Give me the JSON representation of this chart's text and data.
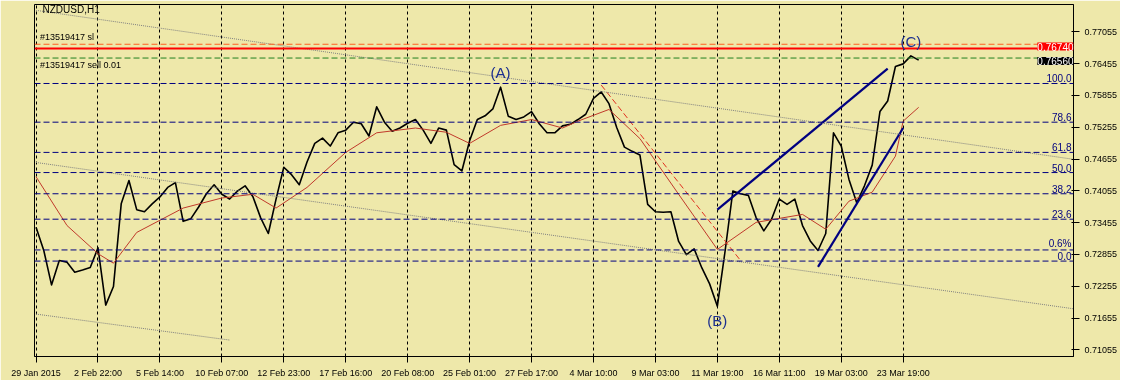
{
  "chart_data": {
    "type": "line",
    "title": "NZDUSD,H1",
    "categories": [
      "29 Jan 2015",
      null,
      null,
      null,
      null,
      null,
      null,
      null,
      "2 Feb 22:00",
      null,
      null,
      null,
      null,
      null,
      null,
      null,
      "5 Feb 14:00",
      null,
      null,
      null,
      null,
      null,
      null,
      null,
      "10 Feb 07:00",
      null,
      null,
      null,
      null,
      null,
      null,
      null,
      "12 Feb 23:00",
      null,
      null,
      null,
      null,
      null,
      null,
      null,
      "17 Feb 16:00",
      null,
      null,
      null,
      null,
      null,
      null,
      null,
      "20 Feb 08:00",
      null,
      null,
      null,
      null,
      null,
      null,
      null,
      "25 Feb 01:00",
      null,
      null,
      null,
      null,
      null,
      null,
      null,
      "27 Feb 17:00",
      null,
      null,
      null,
      null,
      null,
      null,
      null,
      "4 Mar 10:00",
      null,
      null,
      null,
      null,
      null,
      null,
      null,
      "9 Mar 03:00",
      null,
      null,
      null,
      null,
      null,
      null,
      null,
      "11 Mar 19:00",
      null,
      null,
      null,
      null,
      null,
      null,
      null,
      "16 Mar 11:00",
      null,
      null,
      null,
      null,
      null,
      null,
      null,
      "19 Mar 03:00",
      null,
      null,
      null,
      null,
      null,
      null,
      null,
      "23 Mar 19:00",
      null,
      null,
      null,
      null,
      null,
      null,
      null,
      null,
      null,
      null,
      null,
      null,
      null,
      null,
      null,
      null,
      null,
      null,
      null,
      null,
      null,
      null
    ],
    "series": [
      {
        "color": "#000000",
        "values": [
          0.7337,
          0.7293,
          0.7228,
          0.7274,
          0.7271,
          0.7252,
          0.7256,
          0.7261,
          0.7298,
          0.719,
          0.7225,
          0.7381,
          0.7425,
          0.737,
          0.7366,
          0.7381,
          0.7394,
          0.7412,
          0.7421,
          0.7348,
          0.7353,
          0.7375,
          0.74,
          0.7417,
          0.7399,
          0.739,
          0.7405,
          0.7415,
          0.7395,
          0.7355,
          0.7325,
          0.739,
          0.745,
          0.7436,
          0.7417,
          0.746,
          0.7495,
          0.7505,
          0.749,
          0.7515,
          0.752,
          0.7535,
          0.7532,
          0.7509,
          0.7564,
          0.7535,
          0.7518,
          0.7524,
          0.7533,
          0.754,
          0.752,
          0.7495,
          0.7524,
          0.752,
          0.7455,
          0.7443,
          0.75,
          0.754,
          0.7547,
          0.756,
          0.7601,
          0.7546,
          0.754,
          0.7545,
          0.7555,
          0.7532,
          0.7515,
          0.7515,
          0.7528,
          0.7531,
          0.754,
          0.755,
          0.758,
          0.7592,
          0.757,
          0.7525,
          0.7488,
          0.748,
          0.7473,
          0.738,
          0.7366,
          0.7365,
          0.7366,
          0.731,
          0.7285,
          0.7296,
          0.726,
          0.723,
          0.7188,
          0.7292,
          0.7405,
          0.74,
          0.7397,
          0.7355,
          0.733,
          0.7352,
          0.739,
          0.738,
          0.739,
          0.734,
          0.7311,
          0.7293,
          0.7325,
          0.7515,
          0.749,
          0.7427,
          0.7383,
          0.7415,
          0.7454,
          0.7555,
          0.7575,
          0.764,
          0.7645,
          0.766,
          0.7652,
          null,
          null,
          null,
          null,
          null,
          null,
          null,
          null,
          null,
          null,
          null,
          null,
          null,
          null,
          null,
          null,
          null,
          null,
          null,
          null
        ]
      },
      {
        "color": "#c0392b",
        "values": [
          0.7432,
          null,
          null,
          null,
          0.734,
          null,
          null,
          null,
          0.7287,
          null,
          0.7269,
          null,
          null,
          0.7327,
          null,
          null,
          null,
          null,
          null,
          0.7373,
          null,
          null,
          null,
          null,
          0.7392,
          null,
          null,
          null,
          0.7399,
          null,
          null,
          0.7373,
          null,
          null,
          null,
          0.7412,
          null,
          null,
          null,
          null,
          0.7478,
          null,
          null,
          null,
          0.7515,
          null,
          null,
          null,
          null,
          0.7524,
          null,
          null,
          null,
          0.7516,
          null,
          null,
          0.7495,
          null,
          null,
          null,
          0.7529,
          null,
          null,
          null,
          0.754,
          null,
          null,
          null,
          0.7524,
          null,
          0.7537,
          null,
          null,
          null,
          0.7559,
          null,
          null,
          null,
          0.7504,
          null,
          null,
          null,
          null,
          0.7399,
          null,
          null,
          null,
          null,
          0.7295,
          null,
          null,
          null,
          null,
          0.7346,
          null,
          null,
          null,
          null,
          null,
          0.7361,
          null,
          null,
          0.7333,
          null,
          null,
          0.7386,
          null,
          null,
          0.7403,
          null,
          null,
          0.7471,
          0.7537,
          null,
          0.7563,
          null,
          null,
          null,
          null,
          null,
          null,
          null,
          null,
          null,
          null,
          null,
          null,
          null,
          null,
          null,
          null,
          null,
          null,
          null,
          null
        ]
      },
      {
        "color": "#000080",
        "values": [
          null,
          null,
          null,
          null,
          null,
          null,
          null,
          null,
          null,
          null,
          null,
          null,
          null,
          null,
          null,
          null,
          null,
          null,
          null,
          null,
          null,
          null,
          null,
          null,
          null,
          null,
          null,
          null,
          null,
          null,
          null,
          null,
          null,
          null,
          null,
          null,
          null,
          null,
          null,
          null,
          null,
          null,
          null,
          null,
          null,
          null,
          null,
          null,
          null,
          null,
          null,
          null,
          null,
          null,
          null,
          null,
          null,
          null,
          null,
          null,
          null,
          null,
          null,
          null,
          null,
          null,
          null,
          null,
          null,
          null,
          null,
          null,
          null,
          null,
          null,
          null,
          null,
          null,
          null,
          null,
          null,
          null,
          null,
          null,
          null,
          null,
          null,
          null,
          0.737,
          null,
          null,
          null,
          null,
          null,
          null,
          null,
          null,
          null,
          null,
          null,
          null,
          null,
          null,
          null,
          null,
          null,
          null,
          null,
          null,
          null,
          0.7636,
          null,
          null,
          null,
          null,
          null,
          null,
          null,
          null,
          null,
          null,
          null,
          null,
          null,
          null,
          null,
          null,
          null,
          null,
          null,
          null,
          null,
          null,
          null,
          null
        ]
      },
      {
        "color": "#000080",
        "values": [
          null,
          null,
          null,
          null,
          null,
          null,
          null,
          null,
          null,
          null,
          null,
          null,
          null,
          null,
          null,
          null,
          null,
          null,
          null,
          null,
          null,
          null,
          null,
          null,
          null,
          null,
          null,
          null,
          null,
          null,
          null,
          null,
          null,
          null,
          null,
          null,
          null,
          null,
          null,
          null,
          null,
          null,
          null,
          null,
          null,
          null,
          null,
          null,
          null,
          null,
          null,
          null,
          null,
          null,
          null,
          null,
          null,
          null,
          null,
          null,
          null,
          null,
          null,
          null,
          null,
          null,
          null,
          null,
          null,
          null,
          null,
          null,
          null,
          null,
          null,
          null,
          null,
          null,
          null,
          null,
          null,
          null,
          null,
          null,
          null,
          null,
          null,
          null,
          null,
          null,
          null,
          null,
          null,
          null,
          null,
          null,
          null,
          null,
          null,
          null,
          null,
          0.7262,
          null,
          null,
          null,
          null,
          null,
          null,
          null,
          null,
          null,
          null,
          0.7524,
          null,
          null,
          null,
          null,
          null,
          null,
          null,
          null,
          null,
          null,
          null,
          null,
          null,
          null,
          null,
          null,
          null,
          null,
          null,
          null,
          null,
          null
        ]
      },
      {
        "color": "#e03020",
        "line_style": "dashed",
        "values": [
          null,
          null,
          null,
          null,
          null,
          null,
          null,
          null,
          null,
          null,
          null,
          null,
          null,
          null,
          null,
          null,
          null,
          null,
          null,
          null,
          null,
          null,
          null,
          null,
          null,
          null,
          null,
          null,
          null,
          null,
          null,
          null,
          null,
          null,
          null,
          null,
          null,
          null,
          null,
          null,
          null,
          null,
          null,
          null,
          null,
          null,
          null,
          null,
          null,
          null,
          null,
          null,
          null,
          null,
          null,
          null,
          null,
          null,
          null,
          null,
          null,
          null,
          null,
          null,
          null,
          null,
          null,
          null,
          null,
          null,
          null,
          null,
          null,
          0.7605,
          null,
          null,
          null,
          null,
          null,
          null,
          null,
          null,
          null,
          null,
          null,
          null,
          null,
          null,
          null,
          null,
          null,
          0.7274,
          null,
          null,
          null,
          null,
          null,
          null,
          null,
          null,
          null,
          null,
          null,
          null,
          null,
          null,
          null,
          null,
          null,
          null,
          null,
          null,
          null,
          null,
          null,
          null,
          null,
          null,
          null,
          null,
          null,
          null,
          null,
          null,
          null,
          null,
          null,
          null,
          null,
          null,
          null,
          null,
          null,
          null,
          null
        ]
      },
      {
        "color": "#808080",
        "line_style": "dotted",
        "values": [
          0.7746,
          null,
          null,
          null,
          null,
          null,
          null,
          null,
          null,
          null,
          null,
          null,
          null,
          null,
          null,
          null,
          null,
          null,
          null,
          null,
          null,
          null,
          null,
          null,
          null,
          null,
          null,
          null,
          null,
          null,
          null,
          null,
          null,
          null,
          null,
          null,
          null,
          null,
          null,
          null,
          null,
          null,
          null,
          null,
          null,
          null,
          null,
          null,
          null,
          null,
          null,
          null,
          null,
          null,
          null,
          null,
          null,
          null,
          null,
          null,
          null,
          null,
          null,
          null,
          null,
          null,
          null,
          null,
          null,
          null,
          null,
          null,
          null,
          null,
          null,
          null,
          null,
          null,
          null,
          null,
          null,
          null,
          null,
          null,
          null,
          null,
          null,
          null,
          null,
          null,
          null,
          null,
          null,
          null,
          null,
          null,
          null,
          null,
          null,
          null,
          null,
          null,
          null,
          null,
          null,
          null,
          null,
          null,
          null,
          null,
          null,
          null,
          null,
          null,
          null,
          null,
          null,
          null,
          null,
          null,
          null,
          null,
          null,
          null,
          null,
          null,
          null,
          null,
          null,
          null,
          null,
          null,
          null,
          null,
          0.7465
        ]
      },
      {
        "color": "#808080",
        "line_style": "dotted",
        "values": [
          0.7459,
          null,
          null,
          null,
          null,
          null,
          null,
          null,
          null,
          null,
          null,
          null,
          null,
          null,
          null,
          null,
          null,
          null,
          null,
          null,
          null,
          null,
          null,
          null,
          null,
          null,
          null,
          null,
          null,
          null,
          null,
          null,
          null,
          null,
          null,
          null,
          null,
          null,
          null,
          null,
          null,
          null,
          null,
          null,
          null,
          null,
          null,
          null,
          null,
          null,
          null,
          null,
          null,
          null,
          null,
          null,
          null,
          null,
          null,
          null,
          null,
          null,
          null,
          null,
          null,
          null,
          null,
          null,
          null,
          null,
          null,
          null,
          null,
          null,
          null,
          null,
          null,
          null,
          null,
          null,
          null,
          null,
          null,
          null,
          null,
          null,
          null,
          null,
          null,
          null,
          null,
          null,
          null,
          null,
          null,
          null,
          null,
          null,
          null,
          null,
          null,
          null,
          null,
          null,
          null,
          null,
          null,
          null,
          null,
          null,
          null,
          null,
          null,
          null,
          null,
          null,
          null,
          null,
          null,
          null,
          null,
          null,
          null,
          null,
          null,
          null,
          null,
          null,
          null,
          null,
          null,
          null,
          null,
          null,
          0.7183
        ]
      },
      {
        "color": "#808080",
        "line_style": "dotted",
        "values": [
          0.7173,
          null,
          null,
          null,
          null,
          null,
          null,
          null,
          null,
          null,
          null,
          null,
          null,
          null,
          null,
          null,
          null,
          null,
          null,
          null,
          null,
          null,
          null,
          null,
          null,
          0.7124,
          null,
          null,
          null,
          null,
          null,
          null,
          null,
          null,
          null,
          null,
          null,
          null,
          null,
          null,
          null,
          null,
          null,
          null,
          null,
          null,
          null,
          null,
          null,
          null,
          null,
          null,
          null,
          null,
          null,
          null,
          null,
          null,
          null,
          null,
          null,
          null,
          null,
          null,
          null,
          null,
          null,
          null,
          null,
          null,
          null,
          null,
          null,
          null,
          null,
          null,
          null,
          null,
          null,
          null,
          null,
          null,
          null,
          null,
          null,
          null,
          null,
          null,
          null,
          null,
          null,
          null,
          null,
          null,
          null,
          null,
          null,
          null,
          null,
          null,
          null,
          null,
          null,
          null,
          null,
          null,
          null,
          null,
          null,
          null,
          null,
          null,
          null,
          null,
          null,
          null,
          null,
          null,
          null,
          null,
          null,
          null,
          null,
          null,
          null,
          null,
          null,
          null,
          null,
          null,
          null,
          null,
          null,
          null,
          null
        ]
      }
    ],
    "ylim": [
      0.7093,
      0.7757
    ],
    "yticks": [
      0.71055,
      0.71655,
      0.72255,
      0.72855,
      0.73455,
      0.74055,
      0.74655,
      0.75255,
      0.75855,
      0.76455,
      0.77055
    ],
    "grid": "x",
    "ref_lines": [
      {
        "axis": "y",
        "value": 0.7682,
        "label": "#13519417 sl",
        "color": "#ff6020",
        "line_style": "dashed"
      },
      {
        "axis": "y",
        "value": 0.7656,
        "label": "#13519417 sell 0.01",
        "color": "#208020",
        "line_style": "dashed"
      },
      {
        "axis": "y",
        "value": 0.7674,
        "label": "0.76740",
        "color": "#ff0000",
        "line_style": "solid"
      },
      {
        "axis": "y",
        "value": 0.7608,
        "color": "#000080",
        "line_style": "dashed"
      },
      {
        "axis": "y",
        "value": 0.7535,
        "color": "#000080",
        "line_style": "dashed"
      },
      {
        "axis": "y",
        "value": 0.7478,
        "color": "#000080",
        "line_style": "dashed"
      },
      {
        "axis": "y",
        "value": 0.744,
        "color": "#000080",
        "line_style": "dashed"
      },
      {
        "axis": "y",
        "value": 0.74,
        "color": "#000080",
        "line_style": "dashed"
      },
      {
        "axis": "y",
        "value": 0.7352,
        "color": "#000080",
        "line_style": "dashed"
      },
      {
        "axis": "y",
        "value": 0.7294,
        "color": "#000080",
        "line_style": "dashed"
      },
      {
        "axis": "y",
        "value": 0.7273,
        "color": "#000080",
        "line_style": "dashed"
      }
    ],
    "annotations": [
      {
        "text": "(A)",
        "y": 0.7601
      },
      {
        "text": "(B)",
        "x": "11 Mar 19:00",
        "y": 0.7188
      },
      {
        "text": "(C)",
        "y": 0.766
      },
      {
        "text": "0.76560",
        "y": 0.7656
      },
      {
        "text": "100.0",
        "y": 0.7608
      },
      {
        "text": "78.6",
        "y": 0.7535
      },
      {
        "text": "61.8",
        "y": 0.7478
      },
      {
        "text": "50.0",
        "y": 0.744
      },
      {
        "text": "38.2",
        "y": 0.74
      },
      {
        "text": "23.6",
        "y": 0.7352
      },
      {
        "text": "0.6%",
        "y": 0.7294
      },
      {
        "text": "0.0",
        "y": 0.7273
      }
    ]
  }
}
